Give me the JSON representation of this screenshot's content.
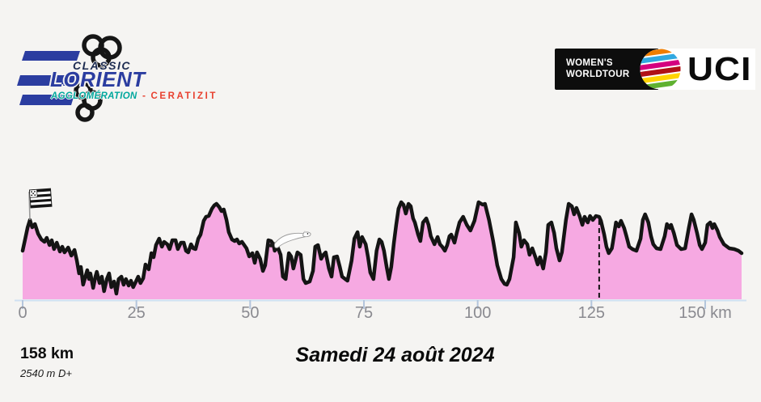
{
  "page": {
    "background": "#f5f4f2"
  },
  "header": {
    "race_logo": {
      "classic": "CLASSIC",
      "lorient": "LORIENT",
      "agglomeration": "AGGLOMÉRATION",
      "separator": "-",
      "ceratizit": "CERATIZIT",
      "colors": {
        "classic": "#1c2b50",
        "lorient": "#2b3da0",
        "agglomeration": "#00a79d",
        "ceratizit": "#e8402f",
        "stripes": "#2b3da0",
        "rings": "#161616"
      }
    },
    "uci_logo": {
      "womens": "WOMEN'S",
      "worldtour": "WORLDTOUR",
      "uci": "UCI",
      "globe_colors": [
        "#ef7d00",
        "#31a8e0",
        "#d4007f",
        "#b01116",
        "#ffd300",
        "#5fb130"
      ]
    }
  },
  "chart_data": {
    "type": "area",
    "title": "Elevation profile",
    "x_unit": "km",
    "y_unit": "m",
    "x_range": [
      0,
      158
    ],
    "grid": false,
    "legend": false,
    "area_color": "#f6a9e2",
    "line_color": "#141414",
    "axis_color": "#cfe0f2",
    "tick_color": "#b4c5dc",
    "tick_label_color": "#8a8a90",
    "x_ticks": [
      {
        "km": 0,
        "label": "0"
      },
      {
        "km": 25,
        "label": "25"
      },
      {
        "km": 50,
        "label": "50"
      },
      {
        "km": 75,
        "label": "75"
      },
      {
        "km": 100,
        "label": "100"
      },
      {
        "km": 125,
        "label": "125"
      },
      {
        "km": 150,
        "label": "150 km"
      }
    ],
    "dashed_marker_km": 126.7,
    "start_flag": {
      "name": "breton-flag",
      "km": 1.6
    },
    "ermine_km": 54.5,
    "profile": [
      [
        0,
        57
      ],
      [
        0.5,
        70
      ],
      [
        1.1,
        86
      ],
      [
        1.6,
        95
      ],
      [
        2.1,
        86
      ],
      [
        2.7,
        90
      ],
      [
        3.4,
        78
      ],
      [
        4.1,
        71
      ],
      [
        4.8,
        68
      ],
      [
        5.3,
        73
      ],
      [
        5.9,
        64
      ],
      [
        6.4,
        70
      ],
      [
        6.9,
        59
      ],
      [
        7.5,
        67
      ],
      [
        8.2,
        56
      ],
      [
        8.7,
        62
      ],
      [
        9.2,
        55
      ],
      [
        10,
        61
      ],
      [
        10.7,
        51
      ],
      [
        11.4,
        58
      ],
      [
        11.9,
        45
      ],
      [
        12.4,
        29
      ],
      [
        12.8,
        37
      ],
      [
        13.3,
        15
      ],
      [
        13.9,
        27
      ],
      [
        14.2,
        33
      ],
      [
        14.6,
        22
      ],
      [
        14.9,
        29
      ],
      [
        15.5,
        11
      ],
      [
        16,
        25
      ],
      [
        16.3,
        31
      ],
      [
        16.9,
        17
      ],
      [
        17.4,
        25
      ],
      [
        17.9,
        7
      ],
      [
        18.5,
        22
      ],
      [
        19,
        29
      ],
      [
        19.5,
        12
      ],
      [
        20.1,
        19
      ],
      [
        20.6,
        4
      ],
      [
        21.1,
        22
      ],
      [
        21.7,
        25
      ],
      [
        22.2,
        15
      ],
      [
        22.7,
        22
      ],
      [
        23.3,
        14
      ],
      [
        23.8,
        20
      ],
      [
        24.3,
        12
      ],
      [
        24.9,
        19
      ],
      [
        25.4,
        25
      ],
      [
        25.9,
        17
      ],
      [
        26.5,
        23
      ],
      [
        27,
        40
      ],
      [
        27.7,
        34
      ],
      [
        28.3,
        54
      ],
      [
        28.8,
        49
      ],
      [
        29.3,
        64
      ],
      [
        30,
        72
      ],
      [
        30.6,
        62
      ],
      [
        31.1,
        68
      ],
      [
        31.8,
        65
      ],
      [
        32.3,
        59
      ],
      [
        32.9,
        70
      ],
      [
        33.6,
        70
      ],
      [
        34.1,
        59
      ],
      [
        34.8,
        67
      ],
      [
        35.4,
        67
      ],
      [
        35.9,
        57
      ],
      [
        36.4,
        55
      ],
      [
        37,
        65
      ],
      [
        37.5,
        60
      ],
      [
        38,
        59
      ],
      [
        38.6,
        72
      ],
      [
        39.1,
        77
      ],
      [
        39.8,
        94
      ],
      [
        40.3,
        99
      ],
      [
        40.9,
        100
      ],
      [
        41.6,
        109
      ],
      [
        42.1,
        113
      ],
      [
        42.6,
        115
      ],
      [
        43.2,
        111
      ],
      [
        43.7,
        106
      ],
      [
        44.2,
        108
      ],
      [
        44.8,
        95
      ],
      [
        45.3,
        80
      ],
      [
        46,
        71
      ],
      [
        46.6,
        69
      ],
      [
        47.1,
        71
      ],
      [
        47.6,
        66
      ],
      [
        48.2,
        68
      ],
      [
        48.7,
        64
      ],
      [
        49.2,
        60
      ],
      [
        49.8,
        50
      ],
      [
        50.5,
        54
      ],
      [
        51,
        42
      ],
      [
        51.5,
        55
      ],
      [
        52.2,
        47
      ],
      [
        52.8,
        32
      ],
      [
        53.3,
        39
      ],
      [
        54,
        70
      ],
      [
        54.6,
        69
      ],
      [
        55.1,
        65
      ],
      [
        55.4,
        57
      ],
      [
        56,
        62
      ],
      [
        56.7,
        52
      ],
      [
        57.2,
        25
      ],
      [
        57.8,
        22
      ],
      [
        58.5,
        54
      ],
      [
        59,
        50
      ],
      [
        59.5,
        35
      ],
      [
        60.4,
        55
      ],
      [
        61.1,
        52
      ],
      [
        61.7,
        22
      ],
      [
        62.2,
        17
      ],
      [
        63.1,
        19
      ],
      [
        63.8,
        32
      ],
      [
        64.3,
        62
      ],
      [
        64.9,
        64
      ],
      [
        65.6,
        47
      ],
      [
        66.1,
        52
      ],
      [
        66.6,
        55
      ],
      [
        67.3,
        35
      ],
      [
        67.9,
        25
      ],
      [
        68.4,
        49
      ],
      [
        69.1,
        50
      ],
      [
        69.7,
        37
      ],
      [
        70.2,
        25
      ],
      [
        70.9,
        22
      ],
      [
        71.4,
        20
      ],
      [
        72.3,
        45
      ],
      [
        72.9,
        72
      ],
      [
        73.6,
        80
      ],
      [
        74.1,
        62
      ],
      [
        74.6,
        74
      ],
      [
        75.4,
        65
      ],
      [
        75.9,
        49
      ],
      [
        76.4,
        30
      ],
      [
        77.1,
        22
      ],
      [
        77.8,
        57
      ],
      [
        78.4,
        71
      ],
      [
        78.9,
        68
      ],
      [
        79.4,
        57
      ],
      [
        80,
        37
      ],
      [
        80.5,
        22
      ],
      [
        81,
        37
      ],
      [
        81.6,
        67
      ],
      [
        82.1,
        89
      ],
      [
        82.6,
        109
      ],
      [
        83.2,
        117
      ],
      [
        83.7,
        114
      ],
      [
        84.2,
        103
      ],
      [
        84.8,
        115
      ],
      [
        85.3,
        112
      ],
      [
        85.8,
        97
      ],
      [
        86.2,
        92
      ],
      [
        86.9,
        77
      ],
      [
        87.4,
        69
      ],
      [
        88,
        92
      ],
      [
        88.7,
        97
      ],
      [
        89.2,
        89
      ],
      [
        89.7,
        75
      ],
      [
        90.5,
        65
      ],
      [
        91.2,
        74
      ],
      [
        91.7,
        65
      ],
      [
        92.2,
        62
      ],
      [
        92.8,
        57
      ],
      [
        93.3,
        64
      ],
      [
        93.8,
        75
      ],
      [
        94.2,
        77
      ],
      [
        94.9,
        67
      ],
      [
        95.4,
        79
      ],
      [
        96,
        92
      ],
      [
        96.8,
        99
      ],
      [
        97.6,
        89
      ],
      [
        98.4,
        82
      ],
      [
        99.3,
        94
      ],
      [
        100.2,
        117
      ],
      [
        101.1,
        114
      ],
      [
        101.6,
        115
      ],
      [
        102.5,
        95
      ],
      [
        103.4,
        69
      ],
      [
        104.3,
        39
      ],
      [
        105.2,
        22
      ],
      [
        105.9,
        16
      ],
      [
        106.4,
        15
      ],
      [
        107,
        22
      ],
      [
        107.9,
        49
      ],
      [
        108.4,
        92
      ],
      [
        109.1,
        79
      ],
      [
        109.6,
        62
      ],
      [
        110.2,
        70
      ],
      [
        110.9,
        65
      ],
      [
        111.4,
        52
      ],
      [
        112,
        60
      ],
      [
        112.7,
        49
      ],
      [
        113.2,
        40
      ],
      [
        113.7,
        49
      ],
      [
        114.4,
        35
      ],
      [
        115,
        55
      ],
      [
        115.5,
        89
      ],
      [
        116.2,
        92
      ],
      [
        116.8,
        79
      ],
      [
        117.3,
        60
      ],
      [
        118,
        45
      ],
      [
        118.5,
        55
      ],
      [
        119.4,
        95
      ],
      [
        120,
        115
      ],
      [
        120.7,
        112
      ],
      [
        121.2,
        102
      ],
      [
        121.7,
        110
      ],
      [
        122.4,
        100
      ],
      [
        123,
        89
      ],
      [
        123.5,
        99
      ],
      [
        124.2,
        92
      ],
      [
        124.7,
        100
      ],
      [
        125.3,
        95
      ],
      [
        126,
        100
      ],
      [
        126.7,
        99
      ],
      [
        127.1,
        94
      ],
      [
        127.8,
        77
      ],
      [
        128.3,
        62
      ],
      [
        128.8,
        54
      ],
      [
        129.5,
        60
      ],
      [
        129.7,
        67
      ],
      [
        130.4,
        92
      ],
      [
        131,
        87
      ],
      [
        131.5,
        94
      ],
      [
        132.2,
        85
      ],
      [
        132.7,
        75
      ],
      [
        133.3,
        62
      ],
      [
        134,
        59
      ],
      [
        134.9,
        57
      ],
      [
        135.8,
        72
      ],
      [
        136.3,
        95
      ],
      [
        136.8,
        102
      ],
      [
        137.5,
        92
      ],
      [
        138.1,
        75
      ],
      [
        138.6,
        65
      ],
      [
        139.3,
        60
      ],
      [
        140.2,
        59
      ],
      [
        141.1,
        75
      ],
      [
        141.6,
        90
      ],
      [
        142.2,
        85
      ],
      [
        142.5,
        89
      ],
      [
        143.1,
        79
      ],
      [
        143.8,
        64
      ],
      [
        144.7,
        59
      ],
      [
        145.6,
        60
      ],
      [
        146.4,
        85
      ],
      [
        147,
        102
      ],
      [
        147.5,
        95
      ],
      [
        148.2,
        79
      ],
      [
        148.8,
        64
      ],
      [
        149.3,
        59
      ],
      [
        150,
        67
      ],
      [
        150.5,
        89
      ],
      [
        151.1,
        92
      ],
      [
        151.6,
        85
      ],
      [
        152,
        90
      ],
      [
        152.7,
        82
      ],
      [
        153.2,
        74
      ],
      [
        154.1,
        65
      ],
      [
        155.3,
        60
      ],
      [
        156.4,
        59
      ],
      [
        157.3,
        57
      ],
      [
        158,
        54
      ]
    ]
  },
  "footer": {
    "distance": "158 km",
    "elevation_gain": "2540 m D+",
    "date": "Samedi 24 août 2024"
  }
}
